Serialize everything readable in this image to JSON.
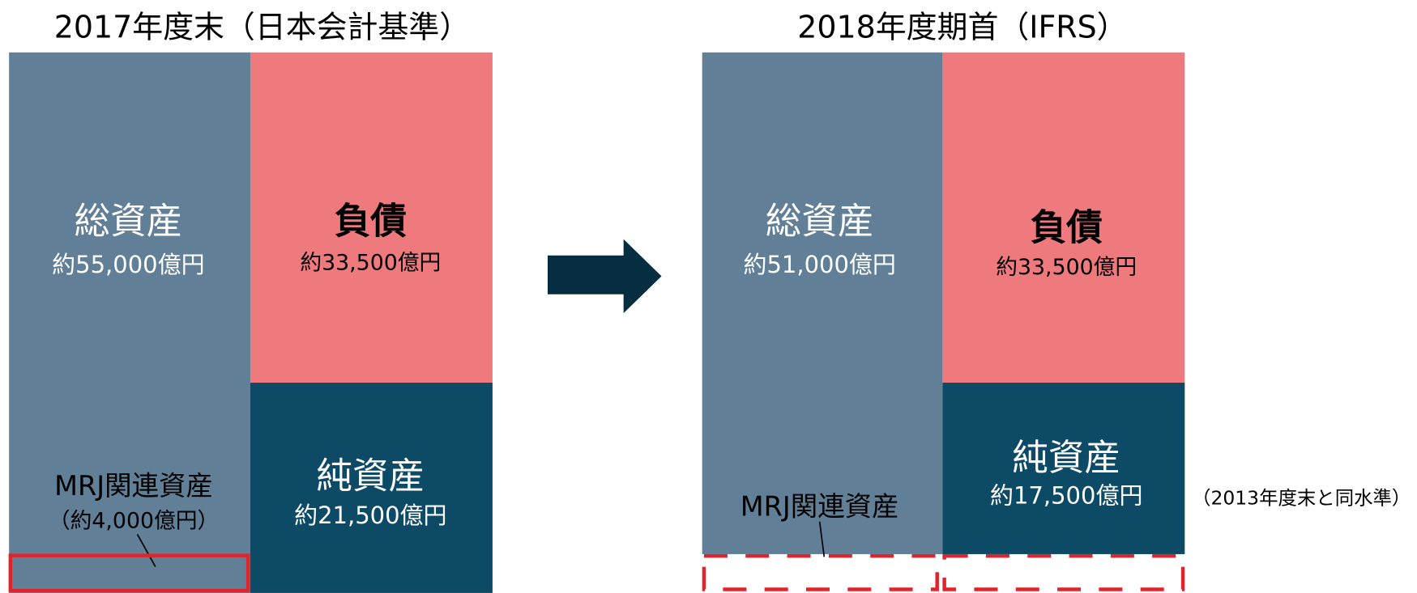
{
  "left": {
    "title": "2017年度末（日本会計基準）",
    "assets": {
      "label": "総資産",
      "amount": "約55,000億円"
    },
    "liabilities": {
      "label": "負債",
      "amount": "約33,500億円"
    },
    "net_assets": {
      "label": "純資産",
      "amount": "約21,500億円"
    },
    "mrj": {
      "label": "MRJ関連資産",
      "amount": "（約4,000億円）"
    }
  },
  "right": {
    "title": "2018年度期首（IFRS）",
    "assets": {
      "label": "総資産",
      "amount": "約51,000億円"
    },
    "liabilities": {
      "label": "負債",
      "amount": "約33,500億円"
    },
    "net_assets": {
      "label": "純資産",
      "amount": "約17,500億円"
    },
    "mrj": {
      "label": "MRJ関連資産"
    },
    "note": "（2013年度末と同水準）"
  }
}
